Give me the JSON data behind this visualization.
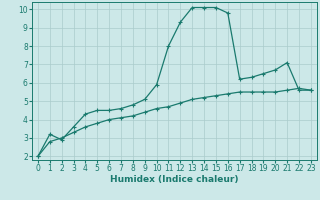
{
  "xlabel": "Humidex (Indice chaleur)",
  "bg_color": "#cce8e8",
  "line_color": "#1a7a6e",
  "xlim": [
    -0.5,
    23.5
  ],
  "ylim": [
    1.8,
    10.4
  ],
  "xticks": [
    0,
    1,
    2,
    3,
    4,
    5,
    6,
    7,
    8,
    9,
    10,
    11,
    12,
    13,
    14,
    15,
    16,
    17,
    18,
    19,
    20,
    21,
    22,
    23
  ],
  "yticks": [
    2,
    3,
    4,
    5,
    6,
    7,
    8,
    9,
    10
  ],
  "grid_color": "#aacccc",
  "series1_x": [
    0,
    1,
    2,
    3,
    4,
    5,
    6,
    7,
    8,
    9,
    10,
    11,
    12,
    13,
    14,
    15,
    16,
    17,
    18,
    19,
    20,
    21,
    22,
    23
  ],
  "series1_y": [
    2.0,
    3.2,
    2.9,
    3.6,
    4.3,
    4.5,
    4.5,
    4.6,
    4.8,
    5.1,
    5.9,
    8.0,
    9.3,
    10.1,
    10.1,
    10.1,
    9.8,
    6.2,
    6.3,
    6.5,
    6.7,
    7.1,
    5.6,
    5.6
  ],
  "series2_x": [
    0,
    1,
    2,
    3,
    4,
    5,
    6,
    7,
    8,
    9,
    10,
    11,
    12,
    13,
    14,
    15,
    16,
    17,
    18,
    19,
    20,
    21,
    22,
    23
  ],
  "series2_y": [
    2.0,
    2.8,
    3.0,
    3.3,
    3.6,
    3.8,
    4.0,
    4.1,
    4.2,
    4.4,
    4.6,
    4.7,
    4.9,
    5.1,
    5.2,
    5.3,
    5.4,
    5.5,
    5.5,
    5.5,
    5.5,
    5.6,
    5.7,
    5.6
  ],
  "tick_fontsize": 5.5,
  "xlabel_fontsize": 6.5,
  "marker_size": 3,
  "linewidth": 0.9
}
